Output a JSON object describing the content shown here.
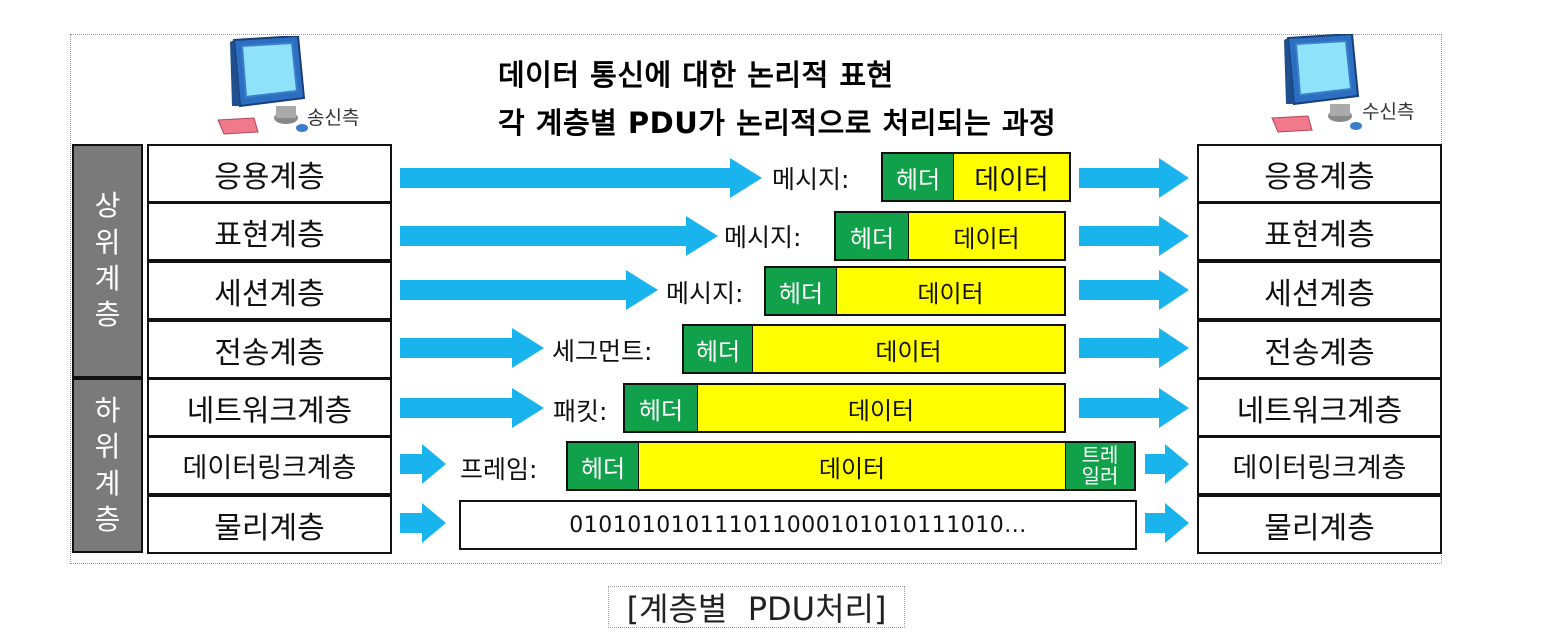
{
  "title": {
    "line1": "데이터 통신에 대한 논리적 표현",
    "line2": "각 계층별 PDU가 논리적으로 처리되는 과정"
  },
  "sender": {
    "label": "송신측",
    "icon": "computer-icon"
  },
  "receiver": {
    "label": "수신측",
    "icon": "computer-icon"
  },
  "groups": {
    "upper": [
      "상",
      "위",
      "계",
      "층"
    ],
    "lower": [
      "하",
      "위",
      "계",
      "층"
    ]
  },
  "layers": [
    "응용계층",
    "표현계층",
    "세션계층",
    "전송계층",
    "네트워크계층",
    "데이터링크계층",
    "물리계층"
  ],
  "pdus": [
    {
      "label": "메시지:",
      "header": "헤더",
      "data": "데이터"
    },
    {
      "label": "메시지:",
      "header": "헤더",
      "data": "데이터"
    },
    {
      "label": "메시지:",
      "header": "헤더",
      "data": "데이터"
    },
    {
      "label": "세그먼트:",
      "header": "헤더",
      "data": "데이터"
    },
    {
      "label": "패킷:",
      "header": "헤더",
      "data": "데이터"
    },
    {
      "label": "프레임:",
      "header": "헤더",
      "data": "데이터",
      "trailer": [
        "트레",
        "일러"
      ]
    }
  ],
  "bits": "010101010111011000101010111010...",
  "caption": "[계층별  PDU처리]",
  "colors": {
    "arrow": "#19b4ee",
    "header": "#11a14a",
    "data": "#ffff00",
    "group": "#7a7a7a"
  }
}
